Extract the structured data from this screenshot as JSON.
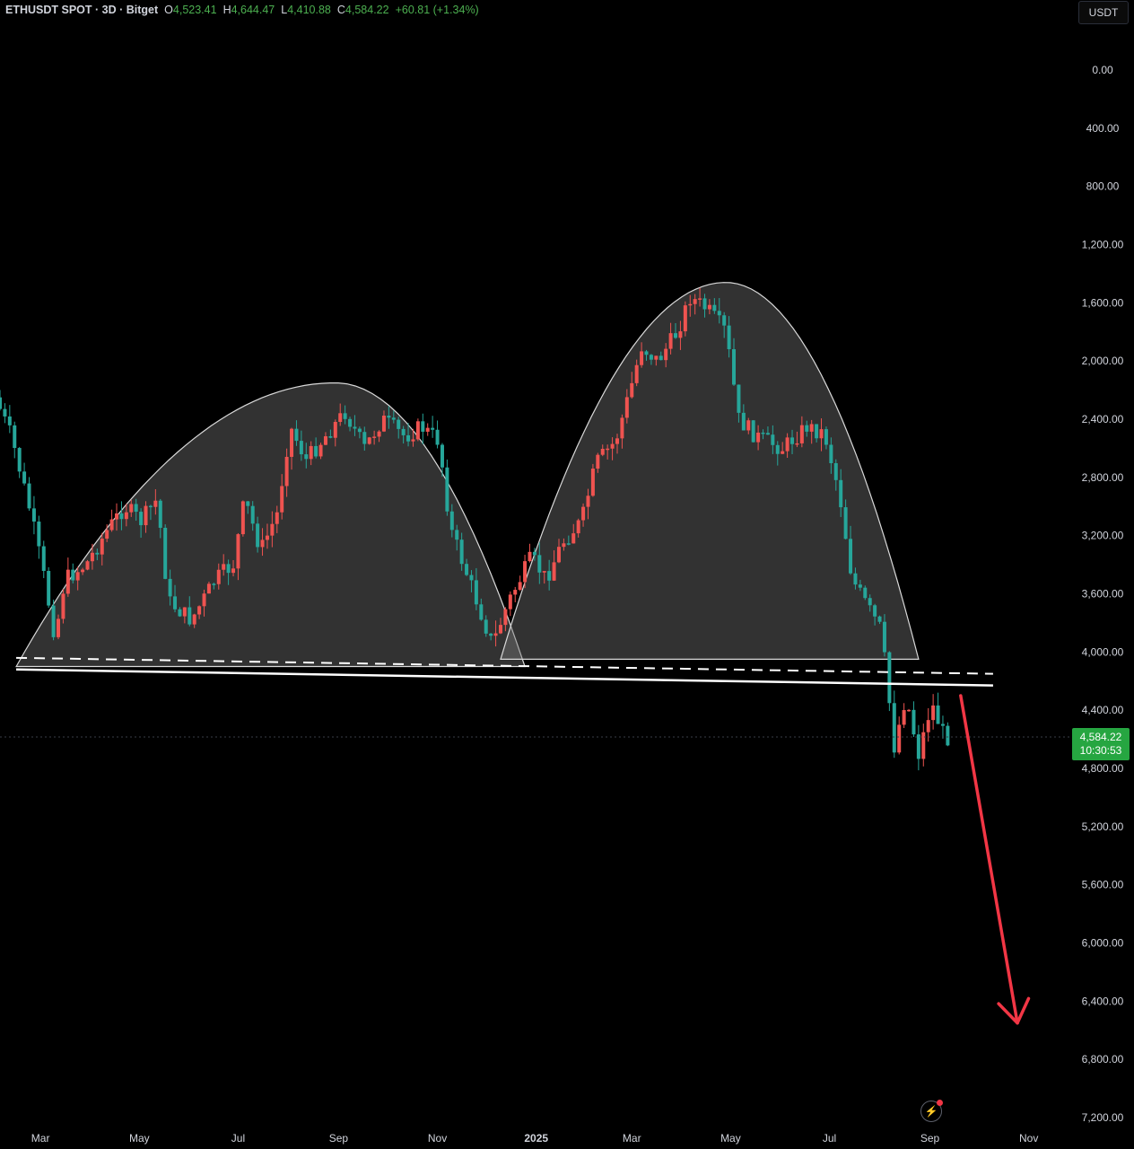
{
  "header": {
    "symbol": "ETHUSDT SPOT · 3D · Bitget",
    "open_label": "O",
    "open": "4,523.41",
    "high_label": "H",
    "high": "4,644.47",
    "low_label": "L",
    "low": "4,410.88",
    "close_label": "C",
    "close": "4,584.22",
    "change": "+60.81 (+1.34%)"
  },
  "unit": "USDT",
  "current_price": {
    "price": "4,584.22",
    "countdown": "10:30:53"
  },
  "colors": {
    "up": "#26a69a",
    "down": "#ef5350",
    "badge": "#26a641",
    "arrow": "#f23645"
  },
  "chart_data": {
    "type": "candlestick",
    "y_axis": {
      "inverted": true,
      "range": [
        -500,
        7300
      ],
      "ticks": [
        "0.00",
        "400.00",
        "800.00",
        "1,200.00",
        "1,600.00",
        "2,000.00",
        "2,400.00",
        "2,800.00",
        "3,200.00",
        "3,600.00",
        "4,000.00",
        "4,400.00",
        "4,800.00",
        "5,200.00",
        "5,600.00",
        "6,000.00",
        "6,400.00",
        "6,800.00",
        "7,200.00"
      ],
      "tick_values": [
        0,
        400,
        800,
        1200,
        1600,
        2000,
        2400,
        2800,
        3200,
        3600,
        4000,
        4400,
        4800,
        5200,
        5600,
        6000,
        6400,
        6800,
        7200
      ]
    },
    "x_axis": {
      "labels": [
        "Mar",
        "May",
        "Jul",
        "Sep",
        "Nov",
        "2025",
        "Mar",
        "May",
        "Jul",
        "Sep",
        "Nov"
      ],
      "label_dates": [
        "2024-03-01",
        "2024-05-01",
        "2024-07-01",
        "2024-09-01",
        "2024-11-01",
        "2025-01-01",
        "2025-03-01",
        "2025-05-01",
        "2025-07-01",
        "2025-09-01",
        "2025-11-01"
      ],
      "range": [
        "2024-02-05",
        "2025-11-25"
      ]
    },
    "grid": false,
    "path": [
      [
        "2024-02-05",
        2250
      ],
      [
        "2024-02-15",
        2520
      ],
      [
        "2024-02-27",
        3050
      ],
      [
        "2024-03-06",
        3480
      ],
      [
        "2024-03-13",
        3900
      ],
      [
        "2024-03-19",
        3500
      ],
      [
        "2024-04-01",
        3400
      ],
      [
        "2024-04-15",
        3150
      ],
      [
        "2024-04-25",
        3000
      ],
      [
        "2024-05-05",
        3100
      ],
      [
        "2024-05-15",
        2950
      ],
      [
        "2024-05-22",
        3650
      ],
      [
        "2024-06-05",
        3780
      ],
      [
        "2024-06-20",
        3500
      ],
      [
        "2024-07-01",
        3400
      ],
      [
        "2024-07-08",
        2950
      ],
      [
        "2024-07-18",
        3300
      ],
      [
        "2024-07-28",
        3050
      ],
      [
        "2024-08-05",
        2450
      ],
      [
        "2024-08-15",
        2680
      ],
      [
        "2024-08-28",
        2500
      ],
      [
        "2024-09-08",
        2350
      ],
      [
        "2024-09-20",
        2600
      ],
      [
        "2024-10-01",
        2400
      ],
      [
        "2024-10-15",
        2520
      ],
      [
        "2024-10-25",
        2450
      ],
      [
        "2024-11-05",
        2550
      ],
      [
        "2024-11-12",
        3150
      ],
      [
        "2024-11-25",
        3550
      ],
      [
        "2024-12-08",
        3950
      ],
      [
        "2024-12-18",
        3650
      ],
      [
        "2025-01-01",
        3350
      ],
      [
        "2025-01-10",
        3500
      ],
      [
        "2025-01-20",
        3250
      ],
      [
        "2025-02-01",
        3100
      ],
      [
        "2025-02-10",
        2700
      ],
      [
        "2025-02-22",
        2550
      ],
      [
        "2025-03-03",
        2200
      ],
      [
        "2025-03-10",
        1900
      ],
      [
        "2025-03-20",
        2000
      ],
      [
        "2025-04-01",
        1800
      ],
      [
        "2025-04-09",
        1560
      ],
      [
        "2025-04-20",
        1650
      ],
      [
        "2025-05-01",
        1800
      ],
      [
        "2025-05-09",
        2400
      ],
      [
        "2025-05-20",
        2520
      ],
      [
        "2025-06-05",
        2600
      ],
      [
        "2025-06-20",
        2450
      ],
      [
        "2025-07-01",
        2500
      ],
      [
        "2025-07-10",
        2900
      ],
      [
        "2025-07-18",
        3500
      ],
      [
        "2025-07-28",
        3700
      ],
      [
        "2025-08-05",
        3850
      ],
      [
        "2025-08-13",
        4650
      ],
      [
        "2025-08-20",
        4300
      ],
      [
        "2025-08-28",
        4700
      ],
      [
        "2025-09-05",
        4350
      ],
      [
        "2025-09-10",
        4500
      ],
      [
        "2025-09-13",
        4584
      ]
    ],
    "annotations": [
      {
        "type": "arc",
        "label": "",
        "from": [
          "2024-02-15",
          4100
        ],
        "peak": [
          "2024-08-30",
          2150
        ],
        "to": [
          "2024-12-25",
          4100
        ]
      },
      {
        "type": "arc",
        "label": "",
        "from": [
          "2024-12-10",
          4050
        ],
        "peak": [
          "2025-04-28",
          1460
        ],
        "to": [
          "2025-08-25",
          4050
        ]
      },
      {
        "type": "line",
        "style": "dashed",
        "from": [
          "2024-02-15",
          4040
        ],
        "to": [
          "2025-10-10",
          4150
        ]
      },
      {
        "type": "line",
        "style": "solid",
        "from": [
          "2024-02-15",
          4120
        ],
        "to": [
          "2025-10-10",
          4230
        ]
      },
      {
        "type": "arrow",
        "color": "#f23645",
        "from": [
          "2025-09-20",
          4300
        ],
        "to": [
          "2025-10-25",
          6550
        ]
      }
    ]
  }
}
